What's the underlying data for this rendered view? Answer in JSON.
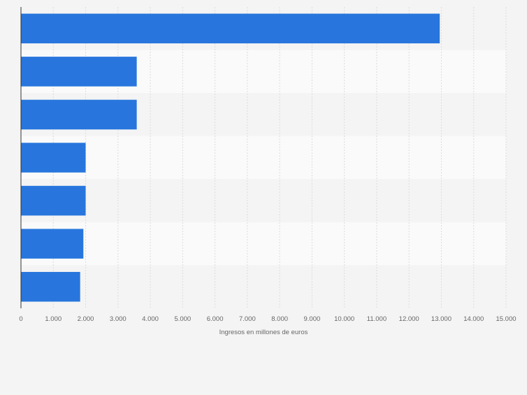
{
  "chart_data": {
    "type": "bar",
    "orientation": "horizontal",
    "categories": [
      "",
      "",
      "",
      "",
      "",
      "",
      ""
    ],
    "values": [
      12950,
      3580,
      3580,
      2000,
      2000,
      1930,
      1830
    ],
    "xlabel": "Ingresos en millones de euros",
    "ylabel": "",
    "xlim": [
      0,
      15000
    ],
    "ticks": [
      0,
      1000,
      2000,
      3000,
      4000,
      5000,
      6000,
      7000,
      8000,
      9000,
      10000,
      11000,
      12000,
      13000,
      14000,
      15000
    ],
    "tick_labels": [
      "0",
      "1.000",
      "2.000",
      "3.000",
      "4.000",
      "5.000",
      "6.000",
      "7.000",
      "8.000",
      "9.000",
      "10.000",
      "11.000",
      "12.000",
      "13.000",
      "14.000",
      "15.000"
    ],
    "grid": true,
    "legend": "none",
    "colors": {
      "bar": "#2876dd",
      "background": "#f4f4f4",
      "band_alt": "#fafafa",
      "grid": "#dcdcdc",
      "axis": "#333333",
      "text": "#666666"
    }
  }
}
